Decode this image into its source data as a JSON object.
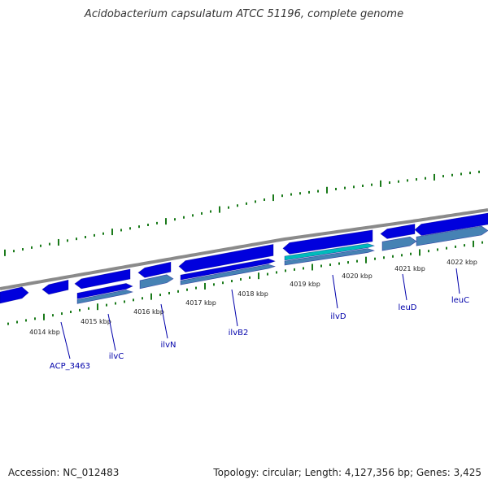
{
  "title": "Acidobacterium capsulatum ATCC 51196, complete genome",
  "accession_text": "Accession: NC_012483",
  "summary_text": "Topology: circular; Length: 4,127,356 bp; Genes: 3,425",
  "colors": {
    "backbone": "#8a8a8a",
    "cds": "#0000dd",
    "cds_light": "#3333ff",
    "rna": "#00bbbb",
    "ssf": "#4682b4",
    "tick": "#1a7a1a",
    "gene_label": "#0000aa",
    "kbp_label": "#222222"
  },
  "kbp_ticks": [
    "4014 kbp",
    "4015 kbp",
    "4016 kbp",
    "4017 kbp",
    "4018 kbp",
    "4019 kbp",
    "4020 kbp",
    "4021 kbp",
    "4022 kbp"
  ],
  "gene_labels": [
    "ACP_3463",
    "ilvC",
    "ilvN",
    "ilvB2",
    "ilvD",
    "leuD",
    "leuC"
  ]
}
